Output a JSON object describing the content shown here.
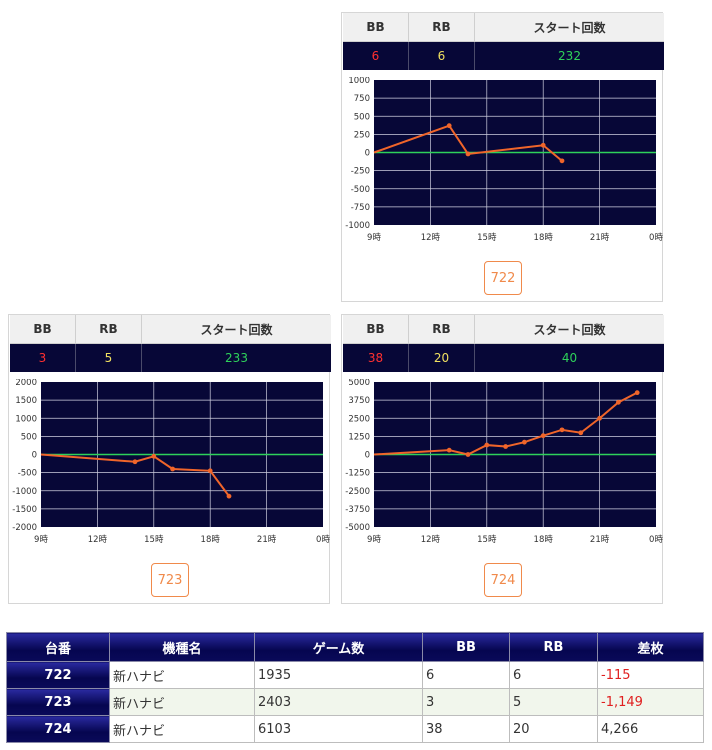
{
  "colors": {
    "bb": "#ff3030",
    "rb": "#f0e060",
    "start": "#2ed15a",
    "button": "#f08a4b",
    "plot_bg": "#070737",
    "line": "#f0652a",
    "zero": "#2ed15a"
  },
  "card_headers": {
    "bb": "BB",
    "rb": "RB",
    "start": "スタート回数"
  },
  "machines": [
    {
      "id": "722",
      "bb": "6",
      "rb": "6",
      "start": "232"
    },
    {
      "id": "723",
      "bb": "3",
      "rb": "5",
      "start": "233"
    },
    {
      "id": "724",
      "bb": "38",
      "rb": "20",
      "start": "40"
    }
  ],
  "chart_data": [
    {
      "type": "line",
      "title": "",
      "xlabel": "",
      "ylabel": "",
      "x_ticks": [
        "9時",
        "12時",
        "15時",
        "18時",
        "21時",
        "0時"
      ],
      "y_ticks": [
        "1000",
        "750",
        "500",
        "250",
        "0",
        "-250",
        "-500",
        "-750",
        "-1000"
      ],
      "ylim": [
        -1000,
        1000
      ],
      "xlim": [
        9,
        24
      ],
      "grid": true,
      "series": [
        {
          "x": [
            9,
            13,
            14,
            18,
            19
          ],
          "values": [
            0,
            370,
            -20,
            100,
            -115
          ]
        }
      ]
    },
    {
      "type": "line",
      "title": "",
      "xlabel": "",
      "ylabel": "",
      "x_ticks": [
        "9時",
        "12時",
        "15時",
        "18時",
        "21時",
        "0時"
      ],
      "y_ticks": [
        "2000",
        "1500",
        "1000",
        "500",
        "0",
        "-500",
        "-1000",
        "-1500",
        "-2000"
      ],
      "ylim": [
        -2000,
        2000
      ],
      "xlim": [
        9,
        24
      ],
      "grid": true,
      "series": [
        {
          "x": [
            9,
            14,
            15,
            16,
            18,
            19
          ],
          "values": [
            0,
            -200,
            -50,
            -400,
            -450,
            -1149
          ]
        }
      ]
    },
    {
      "type": "line",
      "title": "",
      "xlabel": "",
      "ylabel": "",
      "x_ticks": [
        "9時",
        "12時",
        "15時",
        "18時",
        "21時",
        "0時"
      ],
      "y_ticks": [
        "5000",
        "3750",
        "2500",
        "1250",
        "0",
        "-1250",
        "-2500",
        "-3750",
        "-5000"
      ],
      "ylim": [
        -5000,
        5000
      ],
      "xlim": [
        9,
        24
      ],
      "grid": true,
      "series": [
        {
          "x": [
            9,
            13,
            14,
            15,
            16,
            17,
            18,
            19,
            20,
            21,
            22,
            23
          ],
          "values": [
            0,
            300,
            0,
            650,
            550,
            850,
            1300,
            1700,
            1500,
            2500,
            3600,
            4266
          ]
        }
      ]
    }
  ],
  "table": {
    "headers": [
      "台番",
      "機種名",
      "ゲーム数",
      "BB",
      "RB",
      "差枚"
    ],
    "rows": [
      {
        "id": "722",
        "name": "新ハナビ",
        "games": "1935",
        "bb": "6",
        "rb": "6",
        "diff": "-115",
        "neg": true
      },
      {
        "id": "723",
        "name": "新ハナビ",
        "games": "2403",
        "bb": "3",
        "rb": "5",
        "diff": "-1,149",
        "neg": true
      },
      {
        "id": "724",
        "name": "新ハナビ",
        "games": "6103",
        "bb": "38",
        "rb": "20",
        "diff": "4,266",
        "neg": false
      }
    ]
  }
}
